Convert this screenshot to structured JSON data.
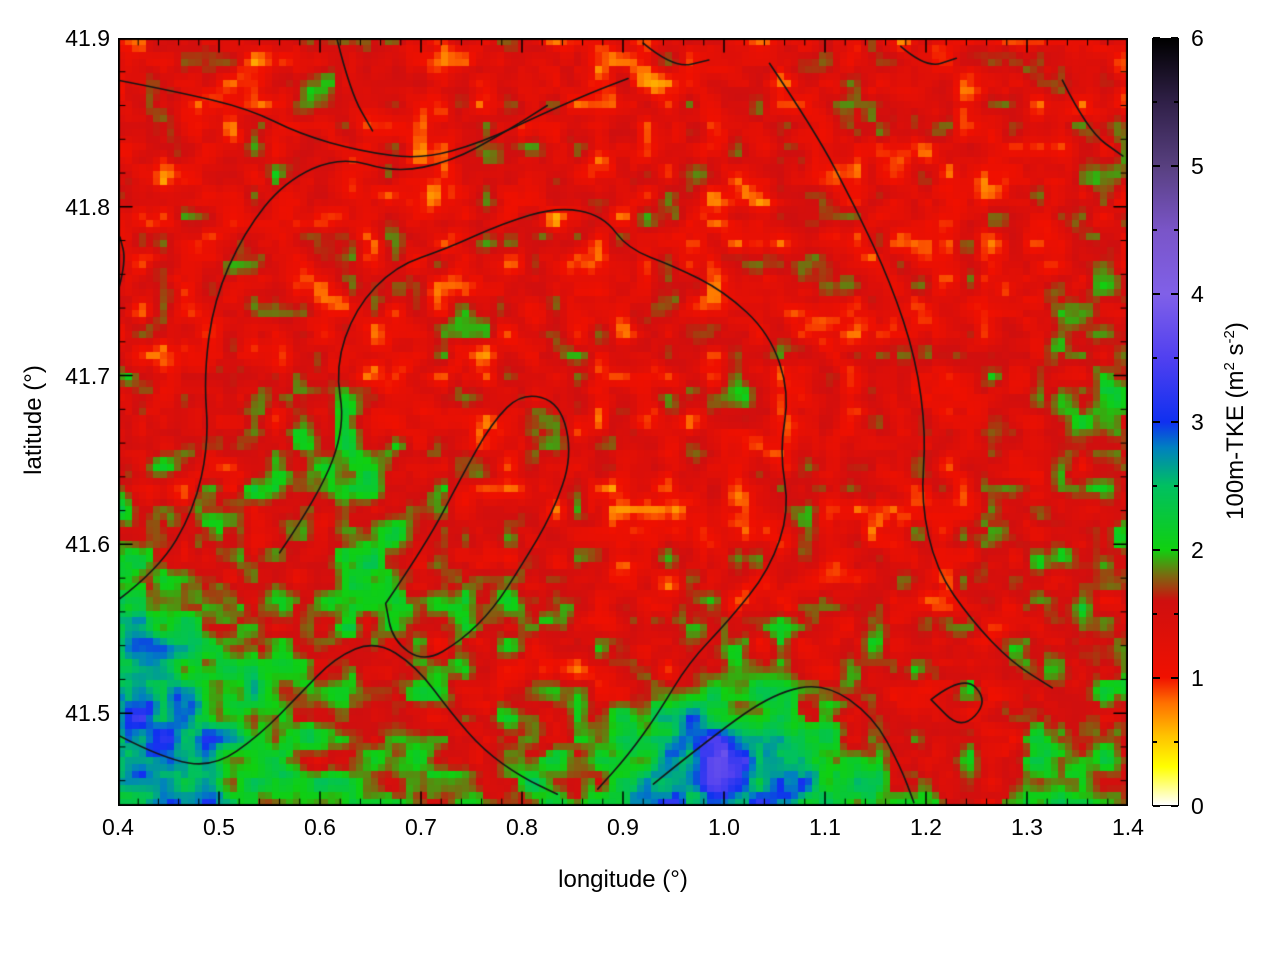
{
  "chart_data": {
    "type": "heatmap",
    "xlabel": "longitude (°)",
    "ylabel": "latitude (°)",
    "x_range": [
      0.4,
      1.4
    ],
    "y_range": [
      41.445,
      41.9
    ],
    "grid": false,
    "x_ticks": {
      "values": [
        0.4,
        0.5,
        0.6,
        0.7,
        0.8,
        0.9,
        1.0,
        1.1,
        1.2,
        1.3,
        1.4
      ],
      "labels": [
        "0.4",
        "0.5",
        "0.6",
        "0.7",
        "0.8",
        "0.9",
        "1.0",
        "1.1",
        "1.2",
        "1.3",
        "1.4"
      ],
      "minor_step": 0.02
    },
    "y_ticks": {
      "values": [
        41.5,
        41.6,
        41.7,
        41.8,
        41.9
      ],
      "labels": [
        "41.5",
        "41.6",
        "41.7",
        "41.8",
        "41.9"
      ],
      "minor_step": 0.02
    },
    "colorbar": {
      "label_parts": [
        {
          "t": "100m-TKE (m"
        },
        {
          "t": "2",
          "sup": true
        },
        {
          "t": " s"
        },
        {
          "t": "-2",
          "sup": true
        },
        {
          "t": ")"
        }
      ],
      "range": [
        0,
        6
      ],
      "ticks": {
        "values": [
          0,
          1,
          2,
          3,
          4,
          5,
          6
        ],
        "labels": [
          "0",
          "1",
          "2",
          "3",
          "4",
          "5",
          "6"
        ],
        "minor_step": 0.5
      },
      "colormap_stops": [
        [
          0.0,
          "#ffffff"
        ],
        [
          0.3,
          "#ffff00"
        ],
        [
          0.55,
          "#ffc000"
        ],
        [
          0.8,
          "#ff7000"
        ],
        [
          1.0,
          "#f01000"
        ],
        [
          1.6,
          "#cf0f0f"
        ],
        [
          1.8,
          "#7a6a10"
        ],
        [
          2.0,
          "#10d010"
        ],
        [
          2.5,
          "#00c060"
        ],
        [
          2.8,
          "#0080c0"
        ],
        [
          3.0,
          "#1030f0"
        ],
        [
          3.5,
          "#5040f0"
        ],
        [
          4.0,
          "#8060e8"
        ],
        [
          4.5,
          "#7a55c8"
        ],
        [
          5.0,
          "#584080"
        ],
        [
          5.5,
          "#302048"
        ],
        [
          6.0,
          "#000000"
        ]
      ]
    },
    "field": {
      "grid_cols": 21,
      "grid_rows": 15,
      "values_north_to_south": [
        [
          1.3,
          1.25,
          1.35,
          1.2,
          1.7,
          1.9,
          1.4,
          1.2,
          1.3,
          1.35,
          1.25,
          1.3,
          1.35,
          1.25,
          1.4,
          1.3,
          1.2,
          1.3,
          1.4,
          1.3,
          1.35
        ],
        [
          1.25,
          1.3,
          1.3,
          1.35,
          1.55,
          1.7,
          1.35,
          1.25,
          1.4,
          1.3,
          1.3,
          1.25,
          1.3,
          1.35,
          1.3,
          1.4,
          1.25,
          1.3,
          1.3,
          1.45,
          1.35
        ],
        [
          1.3,
          1.2,
          1.3,
          1.4,
          1.35,
          1.3,
          1.25,
          1.3,
          1.35,
          1.25,
          1.4,
          1.3,
          1.3,
          1.25,
          1.3,
          1.35,
          1.4,
          1.3,
          1.25,
          1.35,
          1.5
        ],
        [
          1.4,
          1.3,
          1.25,
          1.3,
          1.35,
          1.4,
          1.3,
          1.35,
          1.25,
          1.3,
          1.3,
          1.4,
          1.25,
          1.3,
          1.4,
          1.3,
          1.35,
          1.25,
          1.3,
          1.45,
          1.6
        ],
        [
          1.35,
          1.4,
          1.3,
          1.25,
          1.3,
          1.35,
          1.4,
          1.25,
          1.3,
          1.4,
          1.3,
          1.25,
          1.35,
          1.4,
          1.3,
          1.25,
          1.3,
          1.35,
          1.4,
          1.35,
          1.55
        ],
        [
          1.3,
          1.35,
          1.4,
          1.3,
          1.25,
          1.3,
          1.35,
          1.3,
          1.4,
          1.25,
          1.3,
          1.35,
          1.25,
          1.3,
          1.35,
          1.4,
          1.3,
          1.25,
          1.4,
          1.55,
          1.65
        ],
        [
          1.45,
          1.3,
          1.35,
          1.45,
          1.3,
          1.35,
          1.25,
          1.4,
          1.3,
          1.35,
          1.25,
          1.3,
          1.4,
          1.35,
          1.25,
          1.3,
          1.35,
          1.4,
          1.35,
          1.6,
          1.7
        ],
        [
          1.55,
          1.45,
          1.35,
          1.5,
          1.6,
          1.5,
          1.45,
          1.3,
          1.35,
          1.25,
          1.3,
          1.35,
          1.3,
          1.4,
          1.35,
          1.25,
          1.3,
          1.4,
          1.5,
          1.6,
          1.65
        ],
        [
          1.65,
          1.5,
          1.45,
          1.6,
          1.7,
          1.8,
          1.6,
          1.45,
          1.3,
          1.35,
          1.25,
          1.3,
          1.35,
          1.3,
          1.4,
          1.35,
          1.3,
          1.5,
          1.45,
          1.5,
          1.7
        ],
        [
          1.85,
          1.6,
          1.5,
          1.6,
          1.8,
          1.9,
          1.8,
          1.5,
          1.4,
          1.3,
          1.35,
          1.25,
          1.3,
          1.4,
          1.35,
          1.3,
          1.45,
          1.35,
          1.5,
          1.6,
          1.8
        ],
        [
          2.25,
          1.9,
          1.7,
          1.6,
          1.8,
          1.9,
          1.7,
          1.6,
          1.45,
          1.3,
          1.35,
          1.3,
          1.4,
          1.35,
          1.4,
          1.5,
          1.45,
          1.5,
          1.45,
          1.6,
          1.7
        ],
        [
          2.6,
          2.4,
          2.0,
          1.8,
          1.7,
          1.8,
          1.6,
          1.5,
          1.45,
          1.4,
          1.35,
          1.4,
          1.5,
          1.6,
          1.5,
          1.45,
          1.5,
          1.45,
          1.6,
          1.5,
          1.6
        ],
        [
          2.85,
          2.6,
          2.3,
          1.9,
          1.8,
          1.65,
          1.7,
          1.6,
          1.5,
          1.6,
          1.7,
          1.9,
          2.2,
          2.0,
          1.7,
          1.5,
          1.45,
          1.6,
          1.5,
          1.7,
          1.8
        ],
        [
          2.7,
          2.95,
          2.4,
          2.1,
          1.9,
          1.8,
          1.8,
          1.7,
          1.8,
          1.9,
          2.3,
          2.9,
          3.2,
          2.8,
          2.2,
          1.8,
          1.6,
          1.5,
          1.7,
          1.8,
          1.9
        ],
        [
          2.5,
          2.7,
          2.6,
          2.3,
          2.1,
          2.0,
          1.9,
          2.0,
          1.9,
          2.1,
          2.5,
          3.0,
          3.1,
          2.6,
          2.3,
          2.0,
          1.8,
          1.7,
          1.9,
          2.0,
          2.0
        ]
      ],
      "noise": {
        "seed": 1337,
        "octaves": [
          {
            "nx": 44,
            "ny": 34,
            "amp": 0.5
          },
          {
            "nx": 90,
            "ny": 70,
            "amp": 0.27
          }
        ]
      },
      "clip": [
        0.05,
        5.9
      ],
      "cells": [
        144,
        110
      ]
    },
    "contours": {
      "color": "#161616",
      "polylines_lonlat": [
        [
          [
            0.4,
            41.875
          ],
          [
            0.46,
            41.868
          ],
          [
            0.53,
            41.858
          ],
          [
            0.58,
            41.843
          ],
          [
            0.64,
            41.833
          ],
          [
            0.7,
            41.828
          ],
          [
            0.76,
            41.838
          ],
          [
            0.82,
            41.855
          ],
          [
            0.87,
            41.868
          ],
          [
            0.905,
            41.876
          ]
        ],
        [
          [
            0.4,
            41.567
          ],
          [
            0.44,
            41.585
          ],
          [
            0.475,
            41.62
          ],
          [
            0.49,
            41.66
          ],
          [
            0.485,
            41.7
          ],
          [
            0.495,
            41.745
          ],
          [
            0.525,
            41.785
          ],
          [
            0.565,
            41.815
          ],
          [
            0.62,
            41.83
          ],
          [
            0.675,
            41.82
          ],
          [
            0.73,
            41.827
          ],
          [
            0.78,
            41.843
          ],
          [
            0.825,
            41.86
          ]
        ],
        [
          [
            0.56,
            41.595
          ],
          [
            0.6,
            41.63
          ],
          [
            0.625,
            41.67
          ],
          [
            0.615,
            41.705
          ],
          [
            0.635,
            41.74
          ],
          [
            0.675,
            41.765
          ],
          [
            0.725,
            41.775
          ],
          [
            0.78,
            41.79
          ],
          [
            0.835,
            41.8
          ],
          [
            0.88,
            41.795
          ],
          [
            0.905,
            41.775
          ],
          [
            0.95,
            41.765
          ],
          [
            1.0,
            41.75
          ],
          [
            1.045,
            41.725
          ],
          [
            1.065,
            41.69
          ],
          [
            1.055,
            41.655
          ],
          [
            1.065,
            41.62
          ],
          [
            1.045,
            41.585
          ],
          [
            1.005,
            41.555
          ],
          [
            0.965,
            41.53
          ],
          [
            0.935,
            41.5
          ],
          [
            0.905,
            41.475
          ],
          [
            0.875,
            41.455
          ]
        ],
        [
          [
            0.665,
            41.565
          ],
          [
            0.705,
            41.6
          ],
          [
            0.74,
            41.64
          ],
          [
            0.77,
            41.672
          ],
          [
            0.8,
            41.69
          ],
          [
            0.838,
            41.684
          ],
          [
            0.85,
            41.652
          ],
          [
            0.83,
            41.618
          ],
          [
            0.8,
            41.588
          ],
          [
            0.772,
            41.562
          ],
          [
            0.74,
            41.543
          ],
          [
            0.703,
            41.53
          ],
          [
            0.672,
            41.543
          ],
          [
            0.665,
            41.565
          ]
        ],
        [
          [
            1.045,
            41.885
          ],
          [
            1.09,
            41.845
          ],
          [
            1.13,
            41.8
          ],
          [
            1.165,
            41.755
          ],
          [
            1.19,
            41.71
          ],
          [
            1.2,
            41.665
          ],
          [
            1.195,
            41.625
          ],
          [
            1.21,
            41.585
          ],
          [
            1.245,
            41.555
          ],
          [
            1.285,
            41.53
          ],
          [
            1.325,
            41.515
          ]
        ],
        [
          [
            1.335,
            41.875
          ],
          [
            1.36,
            41.845
          ],
          [
            1.395,
            41.83
          ]
        ],
        [
          [
            0.4,
            41.487
          ],
          [
            0.445,
            41.473
          ],
          [
            0.495,
            41.468
          ],
          [
            0.54,
            41.487
          ],
          [
            0.578,
            41.51
          ],
          [
            0.615,
            41.533
          ],
          [
            0.655,
            41.543
          ],
          [
            0.695,
            41.528
          ],
          [
            0.73,
            41.5
          ],
          [
            0.762,
            41.478
          ],
          [
            0.8,
            41.462
          ],
          [
            0.835,
            41.452
          ]
        ],
        [
          [
            0.93,
            41.458
          ],
          [
            0.99,
            41.487
          ],
          [
            1.05,
            41.512
          ],
          [
            1.1,
            41.518
          ],
          [
            1.148,
            41.498
          ],
          [
            1.175,
            41.468
          ],
          [
            1.188,
            41.447
          ]
        ],
        [
          [
            1.205,
            41.508
          ],
          [
            1.237,
            41.523
          ],
          [
            1.262,
            41.507
          ],
          [
            1.235,
            41.49
          ],
          [
            1.205,
            41.508
          ]
        ],
        [
          [
            0.617,
            41.899
          ],
          [
            0.63,
            41.868
          ],
          [
            0.652,
            41.845
          ]
        ],
        [
          [
            0.92,
            41.897
          ],
          [
            0.95,
            41.882
          ],
          [
            0.985,
            41.887
          ]
        ],
        [
          [
            1.175,
            41.895
          ],
          [
            1.2,
            41.882
          ],
          [
            1.23,
            41.888
          ]
        ],
        [
          [
            0.401,
            41.752
          ],
          [
            0.408,
            41.768
          ],
          [
            0.402,
            41.782
          ]
        ]
      ]
    }
  }
}
